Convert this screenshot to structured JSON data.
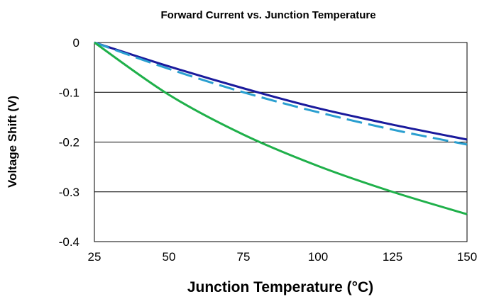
{
  "chart_data": {
    "type": "line",
    "title": "Forward Current vs. Junction Temperature",
    "xlabel": "Junction Temperature (°C)",
    "ylabel": "Voltage Shift (V)",
    "xlim": [
      25,
      150
    ],
    "ylim": [
      -0.4,
      0
    ],
    "x_ticks": [
      25,
      50,
      75,
      100,
      125,
      150
    ],
    "y_ticks": [
      0,
      -0.1,
      -0.2,
      -0.3,
      -0.4
    ],
    "y_tick_labels": [
      "0",
      "-0.1",
      "-0.2",
      "-0.3",
      "-0.4"
    ],
    "grid": "horizontal",
    "legend": "none",
    "series": [
      {
        "color": "#1a1a9c",
        "style": "solid",
        "x": [
          25,
          50,
          75,
          100,
          125,
          150
        ],
        "y": [
          0,
          -0.048,
          -0.092,
          -0.132,
          -0.165,
          -0.195
        ]
      },
      {
        "color": "#2a9fd0",
        "style": "dashed",
        "x": [
          25,
          50,
          75,
          100,
          125,
          150
        ],
        "y": [
          0,
          -0.053,
          -0.1,
          -0.14,
          -0.175,
          -0.205
        ]
      },
      {
        "color": "#1fb04a",
        "style": "solid",
        "x": [
          25,
          50,
          75,
          100,
          125,
          150
        ],
        "y": [
          0,
          -0.105,
          -0.185,
          -0.248,
          -0.3,
          -0.345
        ]
      }
    ]
  }
}
